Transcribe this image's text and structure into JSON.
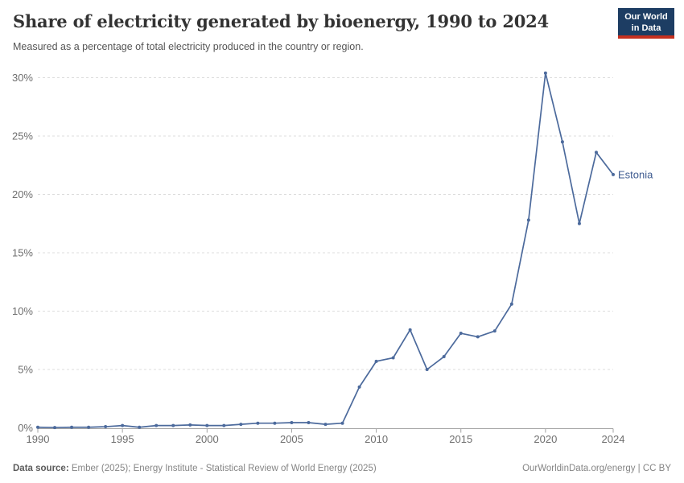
{
  "header": {
    "title": "Share of electricity generated by bioenergy, 1990 to 2024",
    "subtitle": "Measured as a percentage of total electricity produced in the country or region.",
    "logo_line1": "Our World",
    "logo_line2": "in Data"
  },
  "chart_data": {
    "type": "line",
    "title": "Share of electricity generated by bioenergy, 1990 to 2024",
    "subtitle": "Measured as a percentage of total electricity produced in the country or region.",
    "xlabel": "",
    "ylabel": "",
    "x": [
      1990,
      1991,
      1992,
      1993,
      1994,
      1995,
      1996,
      1997,
      1998,
      1999,
      2000,
      2001,
      2002,
      2003,
      2004,
      2005,
      2006,
      2007,
      2008,
      2009,
      2010,
      2011,
      2012,
      2013,
      2014,
      2015,
      2016,
      2017,
      2018,
      2019,
      2020,
      2021,
      2022,
      2023,
      2024
    ],
    "series": [
      {
        "name": "Estonia",
        "color": "#4c6a9c",
        "values": [
          0.05,
          0.03,
          0.05,
          0.05,
          0.1,
          0.2,
          0.05,
          0.2,
          0.2,
          0.25,
          0.2,
          0.2,
          0.3,
          0.4,
          0.4,
          0.45,
          0.45,
          0.3,
          0.4,
          3.5,
          5.7,
          6.0,
          8.4,
          5.0,
          6.1,
          8.1,
          7.8,
          8.3,
          10.6,
          17.8,
          30.4,
          24.5,
          17.5,
          23.6,
          21.7
        ]
      }
    ],
    "xlim": [
      1990,
      2024
    ],
    "ylim": [
      0,
      30
    ],
    "xticks": [
      1990,
      1995,
      2000,
      2005,
      2010,
      2015,
      2020,
      2024
    ],
    "yticks": [
      0,
      5,
      10,
      15,
      20,
      25,
      30
    ],
    "ytick_suffix": "%",
    "grid": "horizontal-dashed",
    "legend": "line-end-label"
  },
  "footer": {
    "datasource_label": "Data source:",
    "datasource_text": " Ember (2025); Energy Institute - Statistical Review of World Energy (2025)",
    "cc_text": "OurWorldinData.org/energy | CC BY"
  },
  "colors": {
    "line": "#4c6a9c",
    "entity_label": "#3d5a8f",
    "grid": "#dcdcdc",
    "axis": "#a3a3a3",
    "tick_label": "#6e6e6e",
    "logo_bg": "#1d3d63",
    "logo_strip": "#c5301f"
  }
}
